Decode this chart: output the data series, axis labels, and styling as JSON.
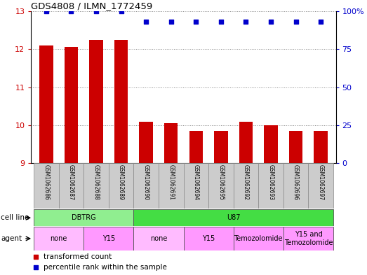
{
  "title": "GDS4808 / ILMN_1772459",
  "samples": [
    "GSM1062686",
    "GSM1062687",
    "GSM1062688",
    "GSM1062689",
    "GSM1062690",
    "GSM1062691",
    "GSM1062694",
    "GSM1062695",
    "GSM1062692",
    "GSM1062693",
    "GSM1062696",
    "GSM1062697"
  ],
  "bar_values": [
    12.1,
    12.05,
    12.25,
    12.25,
    10.1,
    10.05,
    9.85,
    9.85,
    10.1,
    10.0,
    9.85,
    9.85
  ],
  "percentile_values": [
    100,
    100,
    100,
    100,
    93,
    93,
    93,
    93,
    93,
    93,
    93,
    93
  ],
  "bar_color": "#cc0000",
  "dot_color": "#0000cc",
  "ylim_left": [
    9,
    13
  ],
  "ylim_right": [
    0,
    100
  ],
  "yticks_left": [
    9,
    10,
    11,
    12,
    13
  ],
  "yticks_right": [
    0,
    25,
    50,
    75,
    100
  ],
  "ytick_labels_right": [
    "0",
    "25",
    "50",
    "75",
    "100%"
  ],
  "cell_line_groups": [
    {
      "label": "DBTRG",
      "start": 0,
      "end": 3,
      "color": "#90ee90"
    },
    {
      "label": "U87",
      "start": 4,
      "end": 11,
      "color": "#44dd44"
    }
  ],
  "agent_groups": [
    {
      "label": "none",
      "start": 0,
      "end": 1,
      "color": "#ffbbff"
    },
    {
      "label": "Y15",
      "start": 2,
      "end": 3,
      "color": "#ff99ff"
    },
    {
      "label": "none",
      "start": 4,
      "end": 5,
      "color": "#ffbbff"
    },
    {
      "label": "Y15",
      "start": 6,
      "end": 7,
      "color": "#ff99ff"
    },
    {
      "label": "Temozolomide",
      "start": 8,
      "end": 9,
      "color": "#ff99ff"
    },
    {
      "label": "Y15 and\nTemozolomide",
      "start": 10,
      "end": 11,
      "color": "#ff99ff"
    }
  ],
  "legend_items": [
    {
      "label": "transformed count",
      "color": "#cc0000",
      "marker": "s"
    },
    {
      "label": "percentile rank within the sample",
      "color": "#0000cc",
      "marker": "s"
    }
  ],
  "grid_color": "#888888",
  "tick_color_left": "#cc0000",
  "tick_color_right": "#0000cc",
  "sample_bg_color": "#cccccc",
  "sample_sep_color": "#888888"
}
